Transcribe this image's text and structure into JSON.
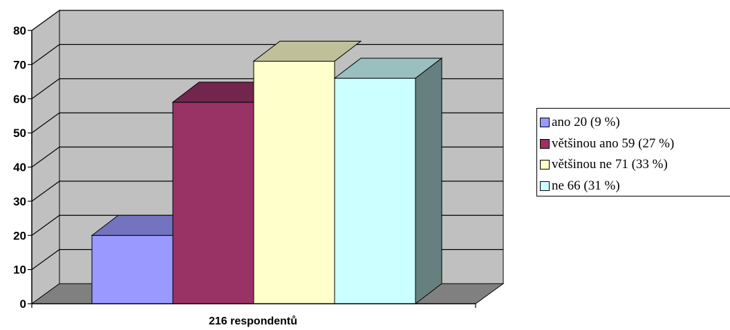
{
  "chart_data": {
    "type": "bar",
    "categories": [
      "216 respondentů"
    ],
    "series": [
      {
        "name": "ano 20 (9 %)",
        "values": [
          20
        ],
        "color": "#9999FF",
        "top_color": "#7373BF",
        "side_color": "#7373BF"
      },
      {
        "name": "většinou ano 59 (27 %)",
        "values": [
          59
        ],
        "color": "#993366",
        "top_color": "#73264D",
        "side_color": "#73264D"
      },
      {
        "name": "většinou ne 71 (33 %)",
        "values": [
          71
        ],
        "color": "#FFFFCC",
        "top_color": "#BFBF99",
        "side_color": "#BFBF99"
      },
      {
        "name": "ne 66 (31 %)",
        "values": [
          66
        ],
        "color": "#CCFFFF",
        "top_color": "#99BFBF",
        "side_color": "#668080"
      }
    ],
    "yticks": [
      0,
      10,
      20,
      30,
      40,
      50,
      60,
      70,
      80
    ],
    "ylim": [
      0,
      80
    ],
    "xlabel": "216 respondentů",
    "title": "",
    "ylabel": "",
    "grid": true,
    "legend_position": "right",
    "wall_color": "#C0C0C0",
    "floor_color": "#808080"
  }
}
